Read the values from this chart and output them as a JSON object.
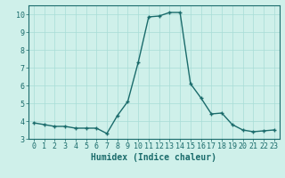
{
  "x": [
    0,
    1,
    2,
    3,
    4,
    5,
    6,
    7,
    8,
    9,
    10,
    11,
    12,
    13,
    14,
    15,
    16,
    17,
    18,
    19,
    20,
    21,
    22,
    23
  ],
  "y": [
    3.9,
    3.8,
    3.7,
    3.7,
    3.6,
    3.6,
    3.6,
    3.3,
    4.3,
    5.1,
    7.3,
    9.85,
    9.9,
    10.1,
    10.1,
    6.1,
    5.3,
    4.4,
    4.45,
    3.8,
    3.5,
    3.4,
    3.45,
    3.5
  ],
  "background_color": "#cff0ea",
  "line_color": "#1a6b6b",
  "marker": "+",
  "xlabel": "Humidex (Indice chaleur)",
  "xlim": [
    -0.5,
    23.5
  ],
  "ylim": [
    3.0,
    10.5
  ],
  "yticks": [
    3,
    4,
    5,
    6,
    7,
    8,
    9,
    10
  ],
  "xticks": [
    0,
    1,
    2,
    3,
    4,
    5,
    6,
    7,
    8,
    9,
    10,
    11,
    12,
    13,
    14,
    15,
    16,
    17,
    18,
    19,
    20,
    21,
    22,
    23
  ],
  "grid_color": "#a8ddd6",
  "label_color": "#1a6b6b",
  "tick_color": "#1a6b6b",
  "axis_color": "#1a6b6b",
  "font_size": 6.0,
  "xlabel_fontsize": 7.0,
  "linewidth": 1.0,
  "markersize": 3.5,
  "markeredgewidth": 1.0
}
